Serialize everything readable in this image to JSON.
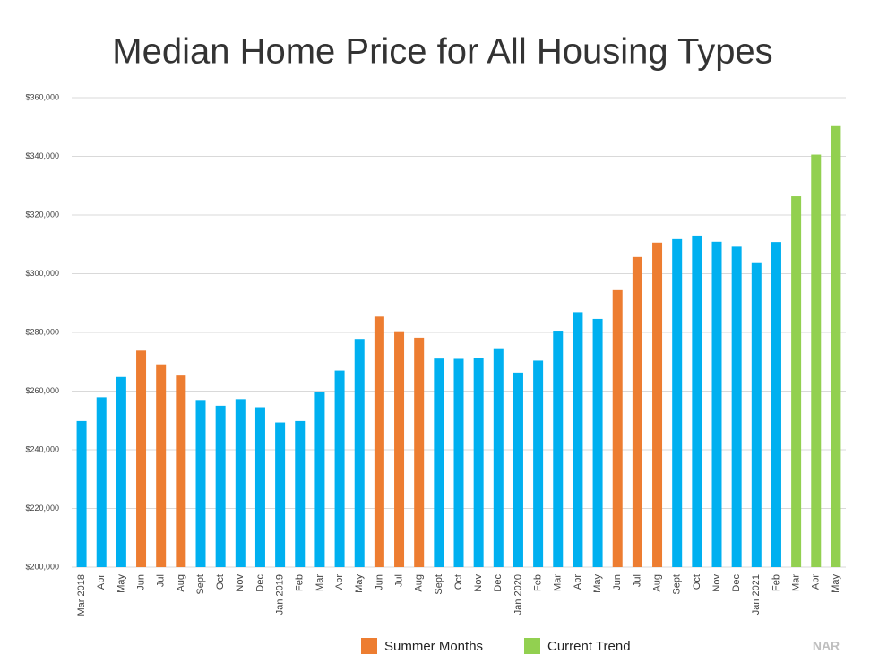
{
  "chart_data": {
    "type": "bar",
    "title": "Median Home Price for All Housing Types",
    "categories": [
      "Mar 2018",
      "Apr",
      "May",
      "Jun",
      "Jul",
      "Aug",
      "Sept",
      "Oct",
      "Nov",
      "Dec",
      "Jan 2019",
      "Feb",
      "Mar",
      "Apr",
      "May",
      "Jun",
      "Jul",
      "Aug",
      "Sept",
      "Oct",
      "Nov",
      "Dec",
      "Jan 2020",
      "Feb",
      "Mar",
      "Apr",
      "May",
      "Jun",
      "Jul",
      "Aug",
      "Sept",
      "Oct",
      "Nov",
      "Dec",
      "Jan 2021",
      "Feb",
      "Mar",
      "Apr",
      "May"
    ],
    "values": [
      249800,
      257900,
      264800,
      273800,
      269100,
      265300,
      257000,
      255000,
      257300,
      254500,
      249300,
      249800,
      259600,
      267000,
      277800,
      285400,
      280400,
      278200,
      271100,
      271000,
      271200,
      274600,
      266300,
      270400,
      280600,
      286900,
      284600,
      294400,
      305700,
      310600,
      311800,
      313000,
      310900,
      309200,
      303900,
      310800,
      326400,
      340600,
      350300
    ],
    "colors": [
      "#00b0f0",
      "#00b0f0",
      "#00b0f0",
      "#ed7d31",
      "#ed7d31",
      "#ed7d31",
      "#00b0f0",
      "#00b0f0",
      "#00b0f0",
      "#00b0f0",
      "#00b0f0",
      "#00b0f0",
      "#00b0f0",
      "#00b0f0",
      "#00b0f0",
      "#ed7d31",
      "#ed7d31",
      "#ed7d31",
      "#00b0f0",
      "#00b0f0",
      "#00b0f0",
      "#00b0f0",
      "#00b0f0",
      "#00b0f0",
      "#00b0f0",
      "#00b0f0",
      "#00b0f0",
      "#ed7d31",
      "#ed7d31",
      "#ed7d31",
      "#00b0f0",
      "#00b0f0",
      "#00b0f0",
      "#00b0f0",
      "#00b0f0",
      "#00b0f0",
      "#92d050",
      "#92d050",
      "#92d050"
    ],
    "legend": [
      {
        "name": "Summer Months",
        "color": "#ed7d31"
      },
      {
        "name": "Current Trend",
        "color": "#92d050"
      }
    ],
    "source": "NAR",
    "ylim": [
      200000,
      360000
    ],
    "yticks": [
      {
        "value": 200000,
        "label": "$200,000"
      },
      {
        "value": 220000,
        "label": "$220,000"
      },
      {
        "value": 240000,
        "label": "$240,000"
      },
      {
        "value": 260000,
        "label": "$260,000"
      },
      {
        "value": 280000,
        "label": "$280,000"
      },
      {
        "value": 300000,
        "label": "$300,000"
      },
      {
        "value": 320000,
        "label": "$320,000"
      },
      {
        "value": 340000,
        "label": "$340,000"
      },
      {
        "value": 360000,
        "label": "$360,000"
      }
    ],
    "grid": true
  }
}
